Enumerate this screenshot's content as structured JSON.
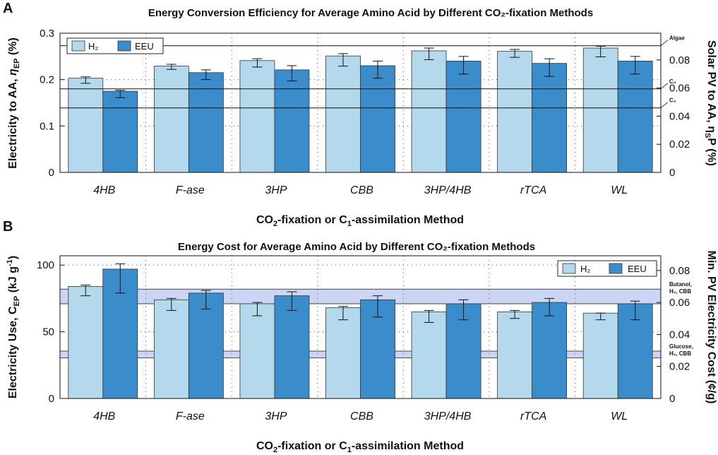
{
  "figure": {
    "xaxis_label": "CO₂-fixation or C₁-assimilation Method"
  },
  "colors": {
    "h2": "#b4d8ec",
    "eeu": "#3b8ccb",
    "band": "#8ea3e6",
    "edge": "#333333"
  },
  "chart_data": [
    {
      "panel": "A",
      "type": "bar",
      "title": "Energy Conversion Efficiency for Average Amino Acid by Different CO₂-fixation Methods",
      "ylabel": "Electricity to AA, ηEP (%)",
      "y2label": "Solar PV to AA, ηSP (%)",
      "xlabel": "CO₂-fixation or C₁-assimilation Method",
      "ylim": [
        0,
        0.3
      ],
      "yticks": [
        "0",
        "0.1",
        "0.2",
        "0.3"
      ],
      "y2lim": [
        0,
        0.099
      ],
      "y2ticks": [
        "0",
        "0.02",
        "0.04",
        "0.06",
        "0.08"
      ],
      "categories": [
        "4HB",
        "F-ase",
        "3HP",
        "CBB",
        "3HP/4HB",
        "rTCA",
        "WL"
      ],
      "legend": {
        "position": "top-left"
      },
      "series": [
        {
          "name": "H₂",
          "values": [
            0.203,
            0.229,
            0.241,
            0.251,
            0.262,
            0.261,
            0.268
          ],
          "err_low": [
            0.192,
            0.222,
            0.227,
            0.229,
            0.243,
            0.248,
            0.249
          ],
          "err_high": [
            0.206,
            0.233,
            0.245,
            0.256,
            0.268,
            0.265,
            0.272
          ]
        },
        {
          "name": "EEU",
          "values": [
            0.175,
            0.215,
            0.221,
            0.23,
            0.24,
            0.235,
            0.24
          ],
          "err_low": [
            0.161,
            0.2,
            0.197,
            0.203,
            0.212,
            0.207,
            0.212
          ],
          "err_high": [
            0.177,
            0.221,
            0.23,
            0.24,
            0.25,
            0.245,
            0.25
          ]
        }
      ],
      "reference_lines": [
        {
          "label": "Algae",
          "value": 0.273
        },
        {
          "label": "C₄",
          "value": 0.18
        },
        {
          "label": "C₃",
          "value": 0.139
        }
      ]
    },
    {
      "panel": "B",
      "type": "bar",
      "title": "Energy Cost for Average Amino Acid by Different CO₂-fixation Methods",
      "ylabel": "Electricity Use, CEP (kJ g⁻¹)",
      "y2label": "Min. PV Electricity Cost (¢/g)",
      "xlabel": "CO₂-fixation or C₁-assimilation Method",
      "ylim": [
        0,
        107
      ],
      "yticks": [
        "0",
        "50",
        "100"
      ],
      "y2lim": [
        0,
        0.0892
      ],
      "y2ticks": [
        "0",
        "0.02",
        "0.04",
        "0.06",
        "0.08"
      ],
      "categories": [
        "4HB",
        "F-ase",
        "3HP",
        "CBB",
        "3HP/4HB",
        "rTCA",
        "WL"
      ],
      "legend": {
        "position": "top-right"
      },
      "series": [
        {
          "name": "H₂",
          "values": [
            84,
            74,
            71,
            68,
            65,
            65,
            64
          ],
          "err_low": [
            77,
            66,
            62,
            59,
            57,
            60,
            59
          ],
          "err_high": [
            85,
            75,
            72,
            69,
            66,
            66,
            64
          ]
        },
        {
          "name": "EEU",
          "values": [
            97,
            79,
            77,
            74,
            71,
            72,
            71
          ],
          "err_low": [
            79,
            67,
            66,
            61,
            59,
            62,
            59
          ],
          "err_high": [
            101,
            81,
            80,
            77,
            74,
            75,
            73
          ]
        }
      ],
      "reference_bands": [
        {
          "label": "Butanol, H₂, CBB",
          "low": 71,
          "high": 82
        },
        {
          "label": "Glucose, H₂, CBB",
          "low": 30.5,
          "high": 35.5
        }
      ]
    }
  ]
}
